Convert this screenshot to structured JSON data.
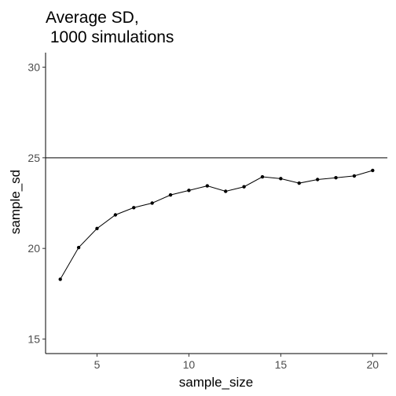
{
  "chart_data": {
    "type": "line",
    "title_line1": "Average SD,",
    "title_line2": " 1000 simulations",
    "xlabel": "sample_size",
    "ylabel": "sample_sd",
    "xlim": [
      2.2,
      20.8
    ],
    "ylim": [
      14.2,
      30.8
    ],
    "x_ticks": [
      5,
      10,
      15,
      20
    ],
    "y_ticks": [
      15,
      20,
      25,
      30
    ],
    "x_tick_labels": [
      "5",
      "10",
      "15",
      "20"
    ],
    "y_tick_labels": [
      "15",
      "20",
      "25",
      "30"
    ],
    "grid": false,
    "reference_line": {
      "y": 25
    },
    "series": [
      {
        "x": [
          3,
          4,
          5,
          6,
          7,
          8,
          9,
          10,
          11,
          12,
          13,
          14,
          15,
          16,
          17,
          18,
          19,
          20
        ],
        "y": [
          18.3,
          20.05,
          21.1,
          21.85,
          22.25,
          22.5,
          22.95,
          23.2,
          23.45,
          23.15,
          23.4,
          23.95,
          23.85,
          23.6,
          23.8,
          23.9,
          24.0,
          24.3
        ]
      }
    ]
  }
}
